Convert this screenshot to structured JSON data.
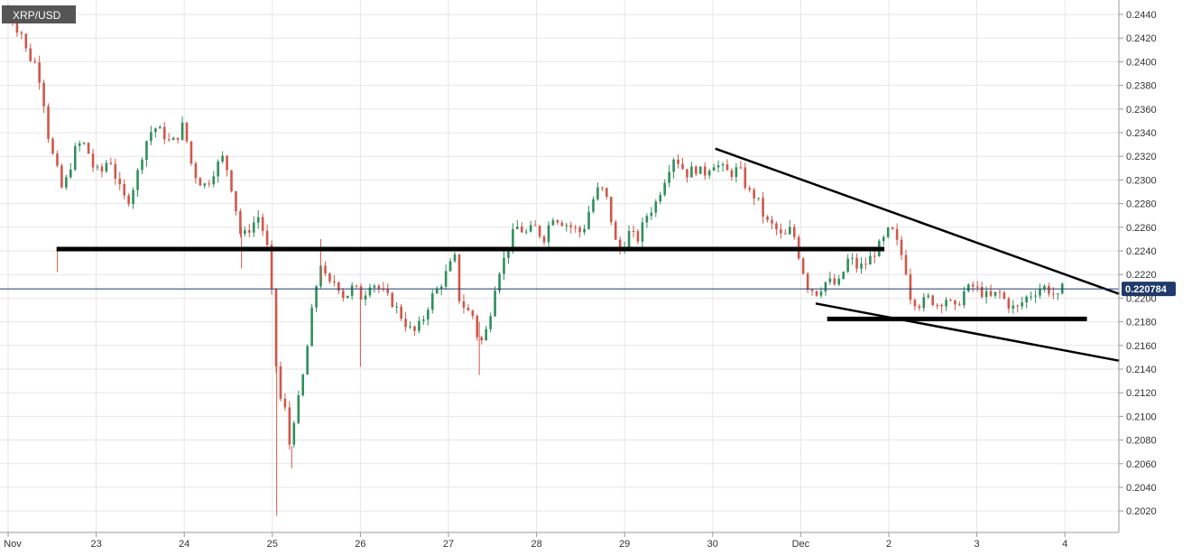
{
  "chart_data": {
    "type": "candlestick",
    "symbol": "XRP/USD",
    "last_price_label": "0.220784",
    "last_price": 0.220784,
    "ylim": [
      0.2005,
      0.2455
    ],
    "y_ticks": [
      "0.2440",
      "0.2420",
      "0.2400",
      "0.2380",
      "0.2360",
      "0.2340",
      "0.2320",
      "0.2300",
      "0.2280",
      "0.2260",
      "0.2240",
      "0.2220",
      "0.2200",
      "0.2180",
      "0.2160",
      "0.2140",
      "0.2120",
      "0.2100",
      "0.2080",
      "0.2060",
      "0.2040",
      "0.2020"
    ],
    "x_ticks": [
      {
        "label": "Nov",
        "t": 0
      },
      {
        "label": "23",
        "t": 1
      },
      {
        "label": "24",
        "t": 2
      },
      {
        "label": "25",
        "t": 3
      },
      {
        "label": "26",
        "t": 4
      },
      {
        "label": "27",
        "t": 5
      },
      {
        "label": "28",
        "t": 6
      },
      {
        "label": "29",
        "t": 7
      },
      {
        "label": "30",
        "t": 8
      },
      {
        "label": "Dec",
        "t": 9
      },
      {
        "label": "2",
        "t": 10
      },
      {
        "label": "3",
        "t": 11
      },
      {
        "label": "4",
        "t": 12
      }
    ],
    "grid": true,
    "colors": {
      "up": "#2f8f5b",
      "down": "#d0574a",
      "line": "#000000",
      "price_line": "#1f3a6b",
      "price_tag": "#1f3a6b",
      "badge": "#555555",
      "grid": "#e6e6e6"
    },
    "close_path": [
      [
        0.0,
        0.2445
      ],
      [
        0.08,
        0.243
      ],
      [
        0.15,
        0.2425
      ],
      [
        0.22,
        0.2405
      ],
      [
        0.3,
        0.24
      ],
      [
        0.38,
        0.238
      ],
      [
        0.47,
        0.233
      ],
      [
        0.55,
        0.231
      ],
      [
        0.62,
        0.229
      ],
      [
        0.7,
        0.231
      ],
      [
        0.78,
        0.233
      ],
      [
        0.88,
        0.233
      ],
      [
        0.97,
        0.231
      ],
      [
        1.05,
        0.2305
      ],
      [
        1.15,
        0.232
      ],
      [
        1.25,
        0.2295
      ],
      [
        1.35,
        0.228
      ],
      [
        1.45,
        0.23
      ],
      [
        1.55,
        0.233
      ],
      [
        1.65,
        0.2345
      ],
      [
        1.75,
        0.234
      ],
      [
        1.85,
        0.233
      ],
      [
        1.95,
        0.234
      ],
      [
        2.0,
        0.235
      ],
      [
        2.05,
        0.232
      ],
      [
        2.15,
        0.23
      ],
      [
        2.25,
        0.2295
      ],
      [
        2.35,
        0.231
      ],
      [
        2.45,
        0.232
      ],
      [
        2.55,
        0.229
      ],
      [
        2.65,
        0.225
      ],
      [
        2.75,
        0.226
      ],
      [
        2.85,
        0.227
      ],
      [
        2.95,
        0.224
      ],
      [
        3.02,
        0.218
      ],
      [
        3.07,
        0.21
      ],
      [
        3.12,
        0.213
      ],
      [
        3.18,
        0.207
      ],
      [
        3.25,
        0.21
      ],
      [
        3.32,
        0.212
      ],
      [
        3.4,
        0.216
      ],
      [
        3.47,
        0.22
      ],
      [
        3.55,
        0.223
      ],
      [
        3.63,
        0.221
      ],
      [
        3.72,
        0.2215
      ],
      [
        3.82,
        0.22
      ],
      [
        3.92,
        0.221
      ],
      [
        4.02,
        0.22
      ],
      [
        4.12,
        0.2215
      ],
      [
        4.25,
        0.2205
      ],
      [
        4.38,
        0.2195
      ],
      [
        4.5,
        0.218
      ],
      [
        4.6,
        0.217
      ],
      [
        4.7,
        0.218
      ],
      [
        4.8,
        0.22
      ],
      [
        4.9,
        0.221
      ],
      [
        5.0,
        0.2225
      ],
      [
        5.07,
        0.2235
      ],
      [
        5.12,
        0.22
      ],
      [
        5.2,
        0.219
      ],
      [
        5.28,
        0.2185
      ],
      [
        5.35,
        0.216
      ],
      [
        5.42,
        0.217
      ],
      [
        5.48,
        0.219
      ],
      [
        5.55,
        0.222
      ],
      [
        5.62,
        0.223
      ],
      [
        5.7,
        0.225
      ],
      [
        5.78,
        0.226
      ],
      [
        5.88,
        0.2255
      ],
      [
        5.98,
        0.226
      ],
      [
        6.08,
        0.225
      ],
      [
        6.18,
        0.227
      ],
      [
        6.28,
        0.2265
      ],
      [
        6.4,
        0.226
      ],
      [
        6.52,
        0.2255
      ],
      [
        6.62,
        0.228
      ],
      [
        6.72,
        0.2295
      ],
      [
        6.82,
        0.228
      ],
      [
        6.88,
        0.225
      ],
      [
        6.95,
        0.224
      ],
      [
        7.05,
        0.2255
      ],
      [
        7.15,
        0.225
      ],
      [
        7.25,
        0.227
      ],
      [
        7.35,
        0.228
      ],
      [
        7.45,
        0.23
      ],
      [
        7.55,
        0.232
      ],
      [
        7.62,
        0.2315
      ],
      [
        7.7,
        0.2305
      ],
      [
        7.8,
        0.231
      ],
      [
        7.9,
        0.2305
      ],
      [
        8.0,
        0.2315
      ],
      [
        8.1,
        0.231
      ],
      [
        8.2,
        0.2305
      ],
      [
        8.3,
        0.231
      ],
      [
        8.4,
        0.229
      ],
      [
        8.5,
        0.2285
      ],
      [
        8.6,
        0.2265
      ],
      [
        8.7,
        0.226
      ],
      [
        8.8,
        0.225
      ],
      [
        8.9,
        0.226
      ],
      [
        9.0,
        0.223
      ],
      [
        9.08,
        0.221
      ],
      [
        9.18,
        0.2205
      ],
      [
        9.3,
        0.2215
      ],
      [
        9.42,
        0.221
      ],
      [
        9.55,
        0.2235
      ],
      [
        9.65,
        0.2225
      ],
      [
        9.75,
        0.223
      ],
      [
        9.85,
        0.224
      ],
      [
        9.95,
        0.225
      ],
      [
        10.02,
        0.226
      ],
      [
        10.1,
        0.2245
      ],
      [
        10.18,
        0.223
      ],
      [
        10.25,
        0.22
      ],
      [
        10.35,
        0.2195
      ],
      [
        10.45,
        0.22
      ],
      [
        10.55,
        0.2195
      ],
      [
        10.65,
        0.22
      ],
      [
        10.75,
        0.219
      ],
      [
        10.85,
        0.2205
      ],
      [
        10.95,
        0.221
      ],
      [
        11.05,
        0.2205
      ],
      [
        11.15,
        0.22
      ],
      [
        11.25,
        0.2205
      ],
      [
        11.35,
        0.2195
      ],
      [
        11.45,
        0.219
      ],
      [
        11.55,
        0.22
      ],
      [
        11.65,
        0.2205
      ],
      [
        11.75,
        0.221
      ],
      [
        11.85,
        0.2205
      ],
      [
        11.92,
        0.22
      ],
      [
        11.97,
        0.2208
      ]
    ],
    "annotations": [
      {
        "type": "horizontal",
        "name": "resistance-line",
        "price": 0.22415,
        "t_from": 0.55,
        "t_to": 9.95
      },
      {
        "type": "horizontal",
        "name": "support-line",
        "price": 0.21825,
        "t_from": 9.3,
        "t_to": 12.25
      },
      {
        "type": "trendline",
        "name": "upper-trendline",
        "from": [
          8.03,
          0.23265
        ],
        "to": [
          12.62,
          0.22035
        ]
      },
      {
        "type": "trendline",
        "name": "lower-trendline",
        "from": [
          9.17,
          0.21955
        ],
        "to": [
          12.62,
          0.2147
        ]
      }
    ]
  }
}
